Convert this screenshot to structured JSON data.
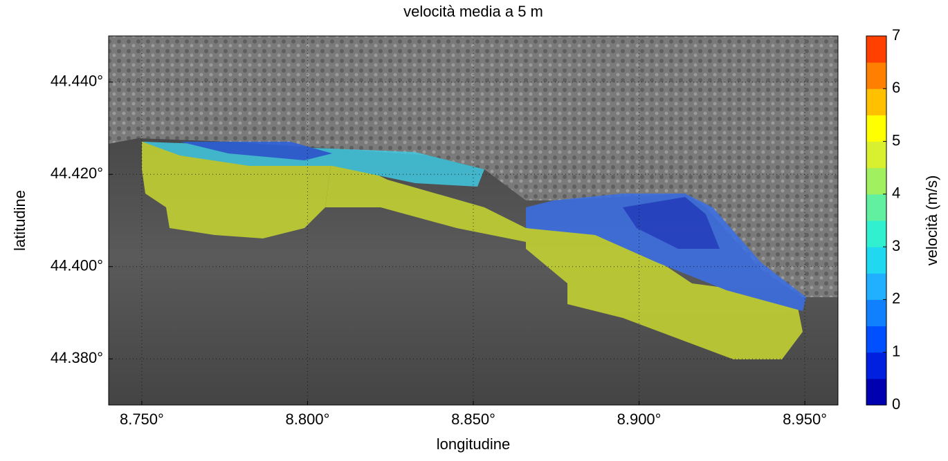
{
  "chart_data": {
    "type": "map",
    "title": "velocità media a 5 m",
    "xlabel": "longitudine",
    "ylabel": "latitudine",
    "xlim": [
      8.74,
      8.96
    ],
    "ylim": [
      44.37,
      44.45
    ],
    "xticks": [
      {
        "value": 8.75,
        "label": "8.750°"
      },
      {
        "value": 8.8,
        "label": "8.800°"
      },
      {
        "value": 8.85,
        "label": "8.850°"
      },
      {
        "value": 8.9,
        "label": "8.900°"
      },
      {
        "value": 8.95,
        "label": "8.950°"
      }
    ],
    "yticks": [
      {
        "value": 44.38,
        "label": "44.380°"
      },
      {
        "value": 44.4,
        "label": "44.400°"
      },
      {
        "value": 44.42,
        "label": "44.420°"
      },
      {
        "value": 44.44,
        "label": "44.440°"
      }
    ],
    "grid": true,
    "colorbar": {
      "label": "velocità (m/s)",
      "lim": [
        0,
        7
      ],
      "ticks": [
        0,
        1,
        2,
        3,
        4,
        5,
        6,
        7
      ],
      "colors": [
        "#0000b0",
        "#0020e0",
        "#0050ff",
        "#1080ff",
        "#20b0ff",
        "#20d8f0",
        "#30f0d0",
        "#60f0a0",
        "#a0f060",
        "#d8f030",
        "#ffff00",
        "#ffc000",
        "#ff8000",
        "#ff4000"
      ]
    }
  }
}
